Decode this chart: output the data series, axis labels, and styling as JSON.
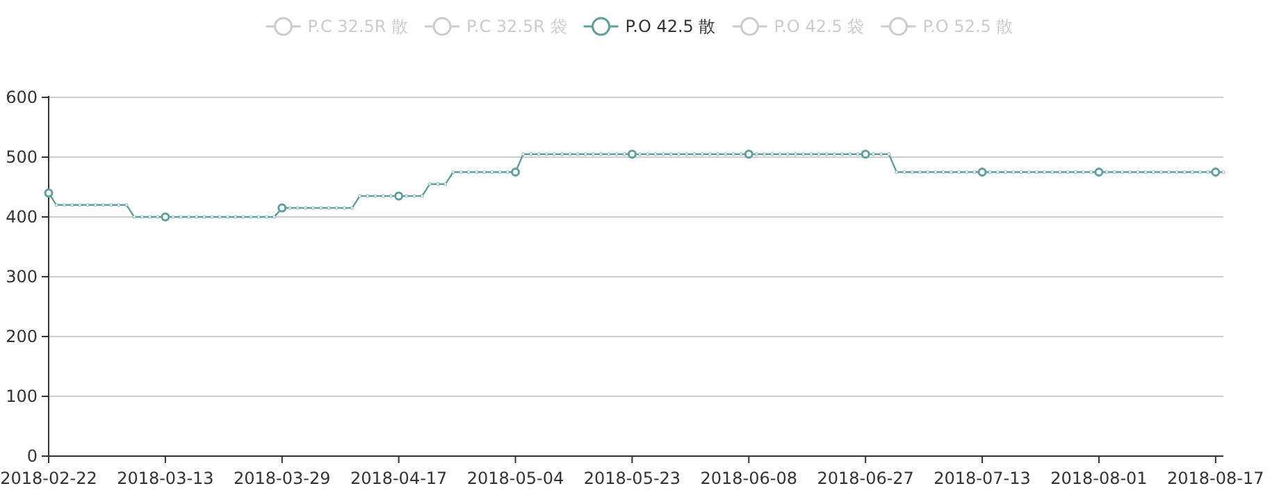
{
  "chart_data": {
    "type": "line",
    "legend": "top",
    "grid": "y",
    "marker": "circle",
    "line_style": "solid",
    "ylim": [
      0,
      600
    ],
    "yticks": [
      0,
      100,
      200,
      300,
      400,
      500,
      600
    ],
    "categories": [
      "2018-02-22",
      null,
      null,
      null,
      null,
      null,
      null,
      null,
      null,
      null,
      null,
      null,
      null,
      null,
      null,
      "2018-03-13",
      null,
      null,
      null,
      null,
      null,
      null,
      null,
      null,
      null,
      null,
      null,
      null,
      null,
      null,
      "2018-03-29",
      null,
      null,
      null,
      null,
      null,
      null,
      null,
      null,
      null,
      null,
      null,
      null,
      null,
      null,
      "2018-04-17",
      null,
      null,
      null,
      null,
      null,
      null,
      null,
      null,
      null,
      null,
      null,
      null,
      null,
      null,
      "2018-05-04",
      null,
      null,
      null,
      null,
      null,
      null,
      null,
      null,
      null,
      null,
      null,
      null,
      null,
      null,
      "2018-05-23",
      null,
      null,
      null,
      null,
      null,
      null,
      null,
      null,
      null,
      null,
      null,
      null,
      null,
      null,
      "2018-06-08",
      null,
      null,
      null,
      null,
      null,
      null,
      null,
      null,
      null,
      null,
      null,
      null,
      null,
      null,
      "2018-06-27",
      null,
      null,
      null,
      null,
      null,
      null,
      null,
      null,
      null,
      null,
      null,
      null,
      null,
      null,
      "2018-07-13",
      null,
      null,
      null,
      null,
      null,
      null,
      null,
      null,
      null,
      null,
      null,
      null,
      null,
      null,
      "2018-08-01",
      null,
      null,
      null,
      null,
      null,
      null,
      null,
      null,
      null,
      null,
      null,
      null,
      null,
      null,
      "2018-08-17",
      null
    ],
    "series": [
      {
        "name": "P.C 32.5R 散",
        "color": "#cccccc",
        "values": [
          null,
          null,
          null,
          null,
          null,
          null,
          null,
          null,
          null,
          null,
          null,
          null,
          null,
          null,
          null,
          null,
          null,
          null,
          null,
          null,
          null,
          null,
          null,
          null,
          null,
          null,
          null,
          null,
          null,
          null,
          null,
          null,
          null,
          null,
          null,
          null,
          null,
          null,
          null,
          null,
          null,
          null,
          null,
          null,
          null,
          null,
          null,
          null,
          null,
          null,
          null,
          null,
          null,
          null,
          null,
          null,
          null,
          null,
          null,
          null,
          null,
          null,
          null,
          null,
          null,
          null,
          null,
          null,
          null,
          null,
          null,
          null,
          null,
          null,
          null,
          null,
          null,
          null,
          null,
          null,
          null,
          null,
          null,
          null,
          null,
          null,
          null,
          null,
          null,
          null,
          null,
          null,
          null,
          null,
          null,
          null,
          null,
          null,
          null,
          null,
          null,
          null,
          null,
          null,
          null,
          null,
          null,
          null,
          null,
          null,
          null,
          null,
          null,
          null,
          null,
          null,
          null,
          null,
          null,
          null,
          null,
          null,
          null,
          null,
          null,
          null,
          null,
          null,
          null,
          null,
          null,
          null,
          null,
          null,
          null,
          null,
          null,
          null,
          null,
          null,
          null,
          null,
          null,
          null,
          null,
          null,
          null,
          null,
          null,
          null,
          null,
          null
        ]
      },
      {
        "name": "P.C 32.5R 袋",
        "color": "#cccccc",
        "values": [
          null,
          null,
          null,
          null,
          null,
          null,
          null,
          null,
          null,
          null,
          null,
          null,
          null,
          null,
          null,
          null,
          null,
          null,
          null,
          null,
          null,
          null,
          null,
          null,
          null,
          null,
          null,
          null,
          null,
          null,
          null,
          null,
          null,
          null,
          null,
          null,
          null,
          null,
          null,
          null,
          null,
          null,
          null,
          null,
          null,
          null,
          null,
          null,
          null,
          null,
          null,
          null,
          null,
          null,
          null,
          null,
          null,
          null,
          null,
          null,
          null,
          null,
          null,
          null,
          null,
          null,
          null,
          null,
          null,
          null,
          null,
          null,
          null,
          null,
          null,
          null,
          null,
          null,
          null,
          null,
          null,
          null,
          null,
          null,
          null,
          null,
          null,
          null,
          null,
          null,
          null,
          null,
          null,
          null,
          null,
          null,
          null,
          null,
          null,
          null,
          null,
          null,
          null,
          null,
          null,
          null,
          null,
          null,
          null,
          null,
          null,
          null,
          null,
          null,
          null,
          null,
          null,
          null,
          null,
          null,
          null,
          null,
          null,
          null,
          null,
          null,
          null,
          null,
          null,
          null,
          null,
          null,
          null,
          null,
          null,
          null,
          null,
          null,
          null,
          null,
          null,
          null,
          null,
          null,
          null,
          null,
          null,
          null,
          null,
          null,
          null,
          null
        ]
      },
      {
        "name": "P.O 42.5 散",
        "color": "#5f9ea0",
        "values": [
          440,
          420,
          420,
          420,
          420,
          420,
          420,
          420,
          420,
          420,
          420,
          400,
          400,
          400,
          400,
          400,
          400,
          400,
          400,
          400,
          400,
          400,
          400,
          400,
          400,
          400,
          400,
          400,
          400,
          400,
          415,
          415,
          415,
          415,
          415,
          415,
          415,
          415,
          415,
          415,
          435,
          435,
          435,
          435,
          435,
          435,
          435,
          435,
          435,
          455,
          455,
          455,
          475,
          475,
          475,
          475,
          475,
          475,
          475,
          475,
          475,
          505,
          505,
          505,
          505,
          505,
          505,
          505,
          505,
          505,
          505,
          505,
          505,
          505,
          505,
          505,
          505,
          505,
          505,
          505,
          505,
          505,
          505,
          505,
          505,
          505,
          505,
          505,
          505,
          505,
          505,
          505,
          505,
          505,
          505,
          505,
          505,
          505,
          505,
          505,
          505,
          505,
          505,
          505,
          505,
          505,
          505,
          505,
          505,
          475,
          475,
          475,
          475,
          475,
          475,
          475,
          475,
          475,
          475,
          475,
          475,
          475,
          475,
          475,
          475,
          475,
          475,
          475,
          475,
          475,
          475,
          475,
          475,
          475,
          475,
          475,
          475,
          475,
          475,
          475,
          475,
          475,
          475,
          475,
          475,
          475,
          475,
          475,
          475,
          475,
          475,
          475
        ]
      },
      {
        "name": "P.O 42.5 袋",
        "color": "#cccccc",
        "values": [
          null,
          null,
          null,
          null,
          null,
          null,
          null,
          null,
          null,
          null,
          null,
          null,
          null,
          null,
          null,
          null,
          null,
          null,
          null,
          null,
          null,
          null,
          null,
          null,
          null,
          null,
          null,
          null,
          null,
          null,
          null,
          null,
          null,
          null,
          null,
          null,
          null,
          null,
          null,
          null,
          null,
          null,
          null,
          null,
          null,
          null,
          null,
          null,
          null,
          null,
          null,
          null,
          null,
          null,
          null,
          null,
          null,
          null,
          null,
          null,
          null,
          null,
          null,
          null,
          null,
          null,
          null,
          null,
          null,
          null,
          null,
          null,
          null,
          null,
          null,
          null,
          null,
          null,
          null,
          null,
          null,
          null,
          null,
          null,
          null,
          null,
          null,
          null,
          null,
          null,
          null,
          null,
          null,
          null,
          null,
          null,
          null,
          null,
          null,
          null,
          null,
          null,
          null,
          null,
          null,
          null,
          null,
          null,
          null,
          null,
          null,
          null,
          null,
          null,
          null,
          null,
          null,
          null,
          null,
          null,
          null,
          null,
          null,
          null,
          null,
          null,
          null,
          null,
          null,
          null,
          null,
          null,
          null,
          null,
          null,
          null,
          null,
          null,
          null,
          null,
          null,
          null,
          null,
          null,
          null,
          null,
          null,
          null,
          null,
          null,
          null,
          null
        ]
      },
      {
        "name": "P.O 52.5 散",
        "color": "#cccccc",
        "values": [
          null,
          null,
          null,
          null,
          null,
          null,
          null,
          null,
          null,
          null,
          null,
          null,
          null,
          null,
          null,
          null,
          null,
          null,
          null,
          null,
          null,
          null,
          null,
          null,
          null,
          null,
          null,
          null,
          null,
          null,
          null,
          null,
          null,
          null,
          null,
          null,
          null,
          null,
          null,
          null,
          null,
          null,
          null,
          null,
          null,
          null,
          null,
          null,
          null,
          null,
          null,
          null,
          null,
          null,
          null,
          null,
          null,
          null,
          null,
          null,
          null,
          null,
          null,
          null,
          null,
          null,
          null,
          null,
          null,
          null,
          null,
          null,
          null,
          null,
          null,
          null,
          null,
          null,
          null,
          null,
          null,
          null,
          null,
          null,
          null,
          null,
          null,
          null,
          null,
          null,
          null,
          null,
          null,
          null,
          null,
          null,
          null,
          null,
          null,
          null,
          null,
          null,
          null,
          null,
          null,
          null,
          null,
          null,
          null,
          null,
          null,
          null,
          null,
          null,
          null,
          null,
          null,
          null,
          null,
          null,
          null,
          null,
          null,
          null,
          null,
          null,
          null,
          null,
          null,
          null,
          null,
          null,
          null,
          null,
          null,
          null,
          null,
          null,
          null,
          null,
          null,
          null,
          null,
          null,
          null,
          null,
          null,
          null,
          null,
          null,
          null,
          null
        ]
      }
    ]
  }
}
